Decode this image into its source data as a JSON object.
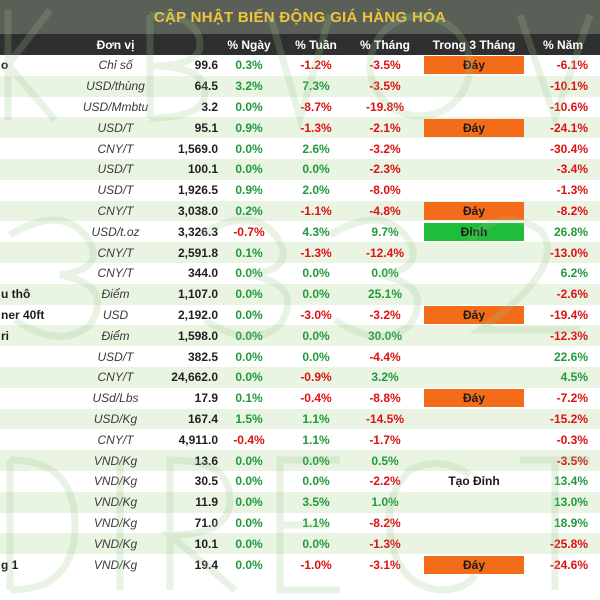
{
  "title": "CẬP NHẬT BIẾN ĐỘNG GIÁ HÀNG HÓA",
  "headers": {
    "unit": "Đơn vị",
    "day": "% Ngày",
    "week": "% Tuần",
    "month": "% Tháng",
    "three_month": "Trong 3 Tháng",
    "year": "% Năm"
  },
  "rows": [
    {
      "name": "o",
      "unit": "Chỉ số",
      "price": "99.6",
      "day": "0.3%",
      "week": "-1.2%",
      "month": "-3.5%",
      "three_month": "Đáy",
      "year": "-6.1%"
    },
    {
      "name": "",
      "unit": "USD/thùng",
      "price": "64.5",
      "day": "3.2%",
      "week": "7.3%",
      "month": "-3.5%",
      "three_month": "",
      "year": "-10.1%"
    },
    {
      "name": "",
      "unit": "USD/Mmbtu",
      "price": "3.2",
      "day": "0.0%",
      "week": "-8.7%",
      "month": "-19.8%",
      "three_month": "",
      "year": "-10.6%"
    },
    {
      "name": "",
      "unit": "USD/T",
      "price": "95.1",
      "day": "0.9%",
      "week": "-1.3%",
      "month": "-2.1%",
      "three_month": "Đáy",
      "year": "-24.1%"
    },
    {
      "name": "",
      "unit": "CNY/T",
      "price": "1,569.0",
      "day": "0.0%",
      "week": "2.6%",
      "month": "-3.2%",
      "three_month": "",
      "year": "-30.4%"
    },
    {
      "name": "",
      "unit": "USD/T",
      "price": "100.1",
      "day": "0.0%",
      "week": "0.0%",
      "month": "-2.3%",
      "three_month": "",
      "year": "-3.4%"
    },
    {
      "name": "",
      "unit": "USD/T",
      "price": "1,926.5",
      "day": "0.9%",
      "week": "2.0%",
      "month": "-8.0%",
      "three_month": "",
      "year": "-1.3%"
    },
    {
      "name": "",
      "unit": "CNY/T",
      "price": "3,038.0",
      "day": "0.2%",
      "week": "-1.1%",
      "month": "-4.8%",
      "three_month": "Đáy",
      "year": "-8.2%"
    },
    {
      "name": "",
      "unit": "USD/t.oz",
      "price": "3,326.3",
      "day": "-0.7%",
      "week": "4.3%",
      "month": "9.7%",
      "three_month": "Đỉnh",
      "year": "26.8%"
    },
    {
      "name": "",
      "unit": "CNY/T",
      "price": "2,591.8",
      "day": "0.1%",
      "week": "-1.3%",
      "month": "-12.4%",
      "three_month": "",
      "year": "-13.0%"
    },
    {
      "name": "",
      "unit": "CNY/T",
      "price": "344.0",
      "day": "0.0%",
      "week": "0.0%",
      "month": "0.0%",
      "three_month": "",
      "year": "6.2%"
    },
    {
      "name": "u thô",
      "unit": "Điểm",
      "price": "1,107.0",
      "day": "0.0%",
      "week": "0.0%",
      "month": "25.1%",
      "three_month": "",
      "year": "-2.6%"
    },
    {
      "name": "ner 40ft",
      "unit": "USD",
      "price": "2,192.0",
      "day": "0.0%",
      "week": "-3.0%",
      "month": "-3.2%",
      "three_month": "Đáy",
      "year": "-19.4%"
    },
    {
      "name": "ri",
      "unit": "Điểm",
      "price": "1,598.0",
      "day": "0.0%",
      "week": "0.0%",
      "month": "30.0%",
      "three_month": "",
      "year": "-12.3%"
    },
    {
      "name": "",
      "unit": "USD/T",
      "price": "382.5",
      "day": "0.0%",
      "week": "0.0%",
      "month": "-4.4%",
      "three_month": "",
      "year": "22.6%"
    },
    {
      "name": "",
      "unit": "CNY/T",
      "price": "24,662.0",
      "day": "0.0%",
      "week": "-0.9%",
      "month": "3.2%",
      "three_month": "",
      "year": "4.5%"
    },
    {
      "name": "",
      "unit": "USd/Lbs",
      "price": "17.9",
      "day": "0.1%",
      "week": "-0.4%",
      "month": "-8.8%",
      "three_month": "Đáy",
      "year": "-7.2%"
    },
    {
      "name": "",
      "unit": "USD/Kg",
      "price": "167.4",
      "day": "1.5%",
      "week": "1.1%",
      "month": "-14.5%",
      "three_month": "",
      "year": "-15.2%"
    },
    {
      "name": "",
      "unit": "CNY/T",
      "price": "4,911.0",
      "day": "-0.4%",
      "week": "1.1%",
      "month": "-1.7%",
      "three_month": "",
      "year": "-0.3%"
    },
    {
      "name": "",
      "unit": "VND/Kg",
      "price": "13.6",
      "day": "0.0%",
      "week": "0.0%",
      "month": "0.5%",
      "three_month": "",
      "year": "-3.5%"
    },
    {
      "name": "",
      "unit": "VND/Kg",
      "price": "30.5",
      "day": "0.0%",
      "week": "0.0%",
      "month": "-2.2%",
      "three_month": "Tạo Đỉnh",
      "year": "13.4%"
    },
    {
      "name": "",
      "unit": "VND/Kg",
      "price": "11.9",
      "day": "0.0%",
      "week": "3.5%",
      "month": "1.0%",
      "three_month": "",
      "year": "13.0%"
    },
    {
      "name": "",
      "unit": "VND/Kg",
      "price": "71.0",
      "day": "0.0%",
      "week": "1.1%",
      "month": "-8.2%",
      "three_month": "",
      "year": "18.9%"
    },
    {
      "name": "",
      "unit": "VND/Kg",
      "price": "10.1",
      "day": "0.0%",
      "week": "0.0%",
      "month": "-1.3%",
      "three_month": "",
      "year": "-25.8%"
    },
    {
      "name": "g 1",
      "unit": "VND/Kg",
      "price": "19.4",
      "day": "0.0%",
      "week": "-1.0%",
      "month": "-3.1%",
      "three_month": "Đáy",
      "year": "-24.6%"
    }
  ],
  "colors": {
    "positive": "#1f9a3c",
    "negative": "#dd1111",
    "bottom_badge": "#f36c1a",
    "top_badge": "#1fbd3a",
    "title_text": "#f0c53a",
    "title_bg": "#5a5f58",
    "header_bg": "#2f2f2f",
    "row_alt_bg": "#e9f4e3"
  }
}
